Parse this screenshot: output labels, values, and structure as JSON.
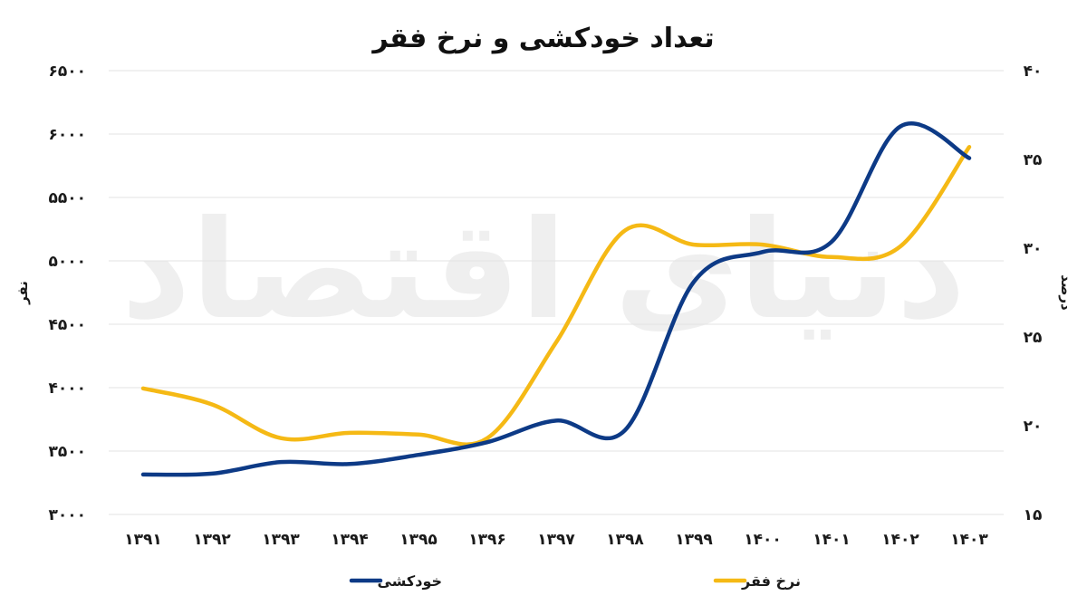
{
  "chart_data": {
    "type": "line",
    "title": "تعداد خودکشی و نرخ فقر",
    "watermark": "دنیای اقتصاد",
    "categories": [
      "۱۳۹۱",
      "۱۳۹۲",
      "۱۳۹۳",
      "۱۳۹۴",
      "۱۳۹۵",
      "۱۳۹۶",
      "۱۳۹۷",
      "۱۳۹۸",
      "۱۳۹۹",
      "۱۴۰۰",
      "۱۴۰۱",
      "۱۴۰۲",
      "۱۴۰۳"
    ],
    "left_axis": {
      "label": "نفر",
      "range": [
        3000,
        6500
      ],
      "ticks": [
        3000,
        3500,
        4000,
        4500,
        5000,
        5500,
        6000,
        6500
      ],
      "tick_labels": [
        "۳۰۰۰",
        "۳۵۰۰",
        "۴۰۰۰",
        "۴۵۰۰",
        "۵۰۰۰",
        "۵۵۰۰",
        "۶۰۰۰",
        "۶۵۰۰"
      ]
    },
    "right_axis": {
      "label": "درصد",
      "range": [
        15,
        40
      ],
      "ticks": [
        15,
        20,
        25,
        30,
        35,
        40
      ],
      "tick_labels": [
        "۱۵",
        "۲۰",
        "۲۵",
        "۳۰",
        "۳۵",
        "۴۰"
      ]
    },
    "grid": true,
    "legend_position": "bottom",
    "series": [
      {
        "name": "خودکشی",
        "axis": "left",
        "color": "#0d3a86",
        "values": [
          3315,
          3322,
          3413,
          3398,
          3470,
          3570,
          3740,
          3665,
          4835,
          5070,
          5150,
          6060,
          5810
        ]
      },
      {
        "name": "نرخ فقر",
        "axis": "right",
        "color": "#f5b915",
        "values": [
          22.1,
          21.2,
          19.3,
          19.6,
          19.5,
          19.3,
          24.7,
          31.0,
          30.2,
          30.2,
          29.5,
          30.1,
          35.7
        ]
      }
    ]
  }
}
